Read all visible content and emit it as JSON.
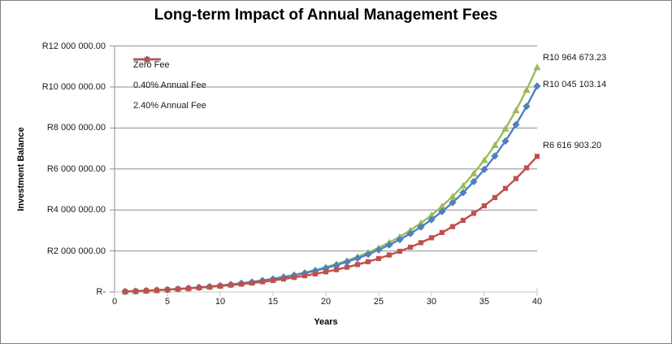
{
  "chart_data": {
    "type": "line",
    "title": "Long-term Impact of Annual Management Fees",
    "xlabel": "Years",
    "ylabel": "Investment Balance",
    "xlim": [
      0,
      40
    ],
    "ylim": [
      0,
      12000000
    ],
    "grid": "horizontal-only",
    "legend_position": "inside-top-left",
    "x_tick_labels": [
      "0",
      "5",
      "10",
      "15",
      "20",
      "25",
      "30",
      "35",
      "40"
    ],
    "y_tick_labels": [
      "R12 000 000.00",
      "R10 000 000.00",
      "R8 000 000.00",
      "R6 000 000.00",
      "R4 000 000.00",
      "R2 000 000.00",
      "R-"
    ],
    "x": [
      1,
      2,
      3,
      4,
      5,
      6,
      7,
      8,
      9,
      10,
      11,
      12,
      13,
      14,
      15,
      16,
      17,
      18,
      19,
      20,
      21,
      22,
      23,
      24,
      25,
      26,
      27,
      28,
      29,
      30,
      31,
      32,
      33,
      34,
      35,
      36,
      37,
      38,
      39,
      40
    ],
    "series": [
      {
        "name": "Zero Fee",
        "color": "#9BBB59",
        "marker": "triangle",
        "end_label": "R10 964 673.23",
        "end_value": 10964673.23,
        "values": [
          19000,
          40000,
          63000,
          89000,
          117000,
          149000,
          184000,
          224000,
          267000,
          315000,
          369000,
          428000,
          494000,
          567000,
          648000,
          739000,
          839000,
          950000,
          1073000,
          1210000,
          1362000,
          1531000,
          1718000,
          1926000,
          2156000,
          2412000,
          2696000,
          3012000,
          3362000,
          3751000,
          4182000,
          4661000,
          5193000,
          5783000,
          6438000,
          7165000,
          7972000,
          8867000,
          9862000,
          10964673.23
        ]
      },
      {
        "name": "0.40% Annual Fee",
        "color": "#4F81BD",
        "marker": "diamond",
        "end_label": "R10 045 103.14",
        "end_value": 10045103.14,
        "values": [
          19000,
          40000,
          63000,
          88000,
          117000,
          148000,
          183000,
          221000,
          263000,
          310000,
          362000,
          420000,
          484000,
          554000,
          632000,
          718000,
          814000,
          920000,
          1037000,
          1166000,
          1310000,
          1469000,
          1644000,
          1839000,
          2054000,
          2292000,
          2556000,
          2848000,
          3170000,
          3528000,
          3924000,
          4361000,
          4846000,
          5383000,
          5976000,
          6633000,
          7361000,
          8166000,
          9056000,
          10045103.14
        ]
      },
      {
        "name": "2.40% Annual Fee",
        "color": "#C0504D",
        "marker": "square",
        "end_label": "R6 616 903.20",
        "end_value": 6616903.2,
        "values": [
          19000,
          39000,
          62000,
          86000,
          113000,
          142000,
          174000,
          209000,
          247000,
          288000,
          334000,
          383000,
          437000,
          496000,
          560000,
          630000,
          706000,
          790000,
          881000,
          981000,
          1089000,
          1208000,
          1337000,
          1478000,
          1632000,
          1800000,
          1984000,
          2184000,
          2403000,
          2642000,
          2902000,
          3187000,
          3497000,
          3836000,
          4206000,
          4609000,
          5050000,
          5531000,
          6056000,
          6616903.2
        ]
      }
    ],
    "colors": {
      "gridline": "#8E8E8E",
      "y_axis": "#8E8E8E",
      "x_axis": "#C4C4C4",
      "border": "#7F7F7F"
    }
  }
}
